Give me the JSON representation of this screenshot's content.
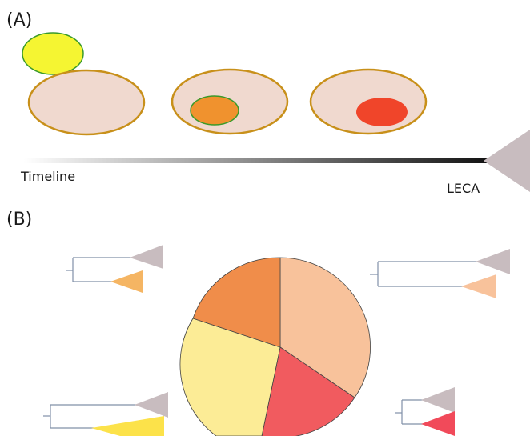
{
  "panel_a": {
    "label": "(A)",
    "timeline_label": "Timeline",
    "leca_label": "LECA"
  },
  "panel_b": {
    "label": "(B)"
  },
  "colors": {
    "cell_fill": "#f0d9cf",
    "cell_stroke": "#c8901a",
    "yellow_cell": "#f5f532",
    "yellow_stroke": "#3a9a2a",
    "orange_nucleus": "#f0922e",
    "red_nucleus": "#f0452a",
    "leca_triangle": "#c8bcbf",
    "pie_light_orange": "#f8c29b",
    "pie_red": "#f15b5f",
    "pie_yellow": "#fcec96",
    "pie_orange": "#f08d4a",
    "tree_line": "#8090a8"
  }
}
